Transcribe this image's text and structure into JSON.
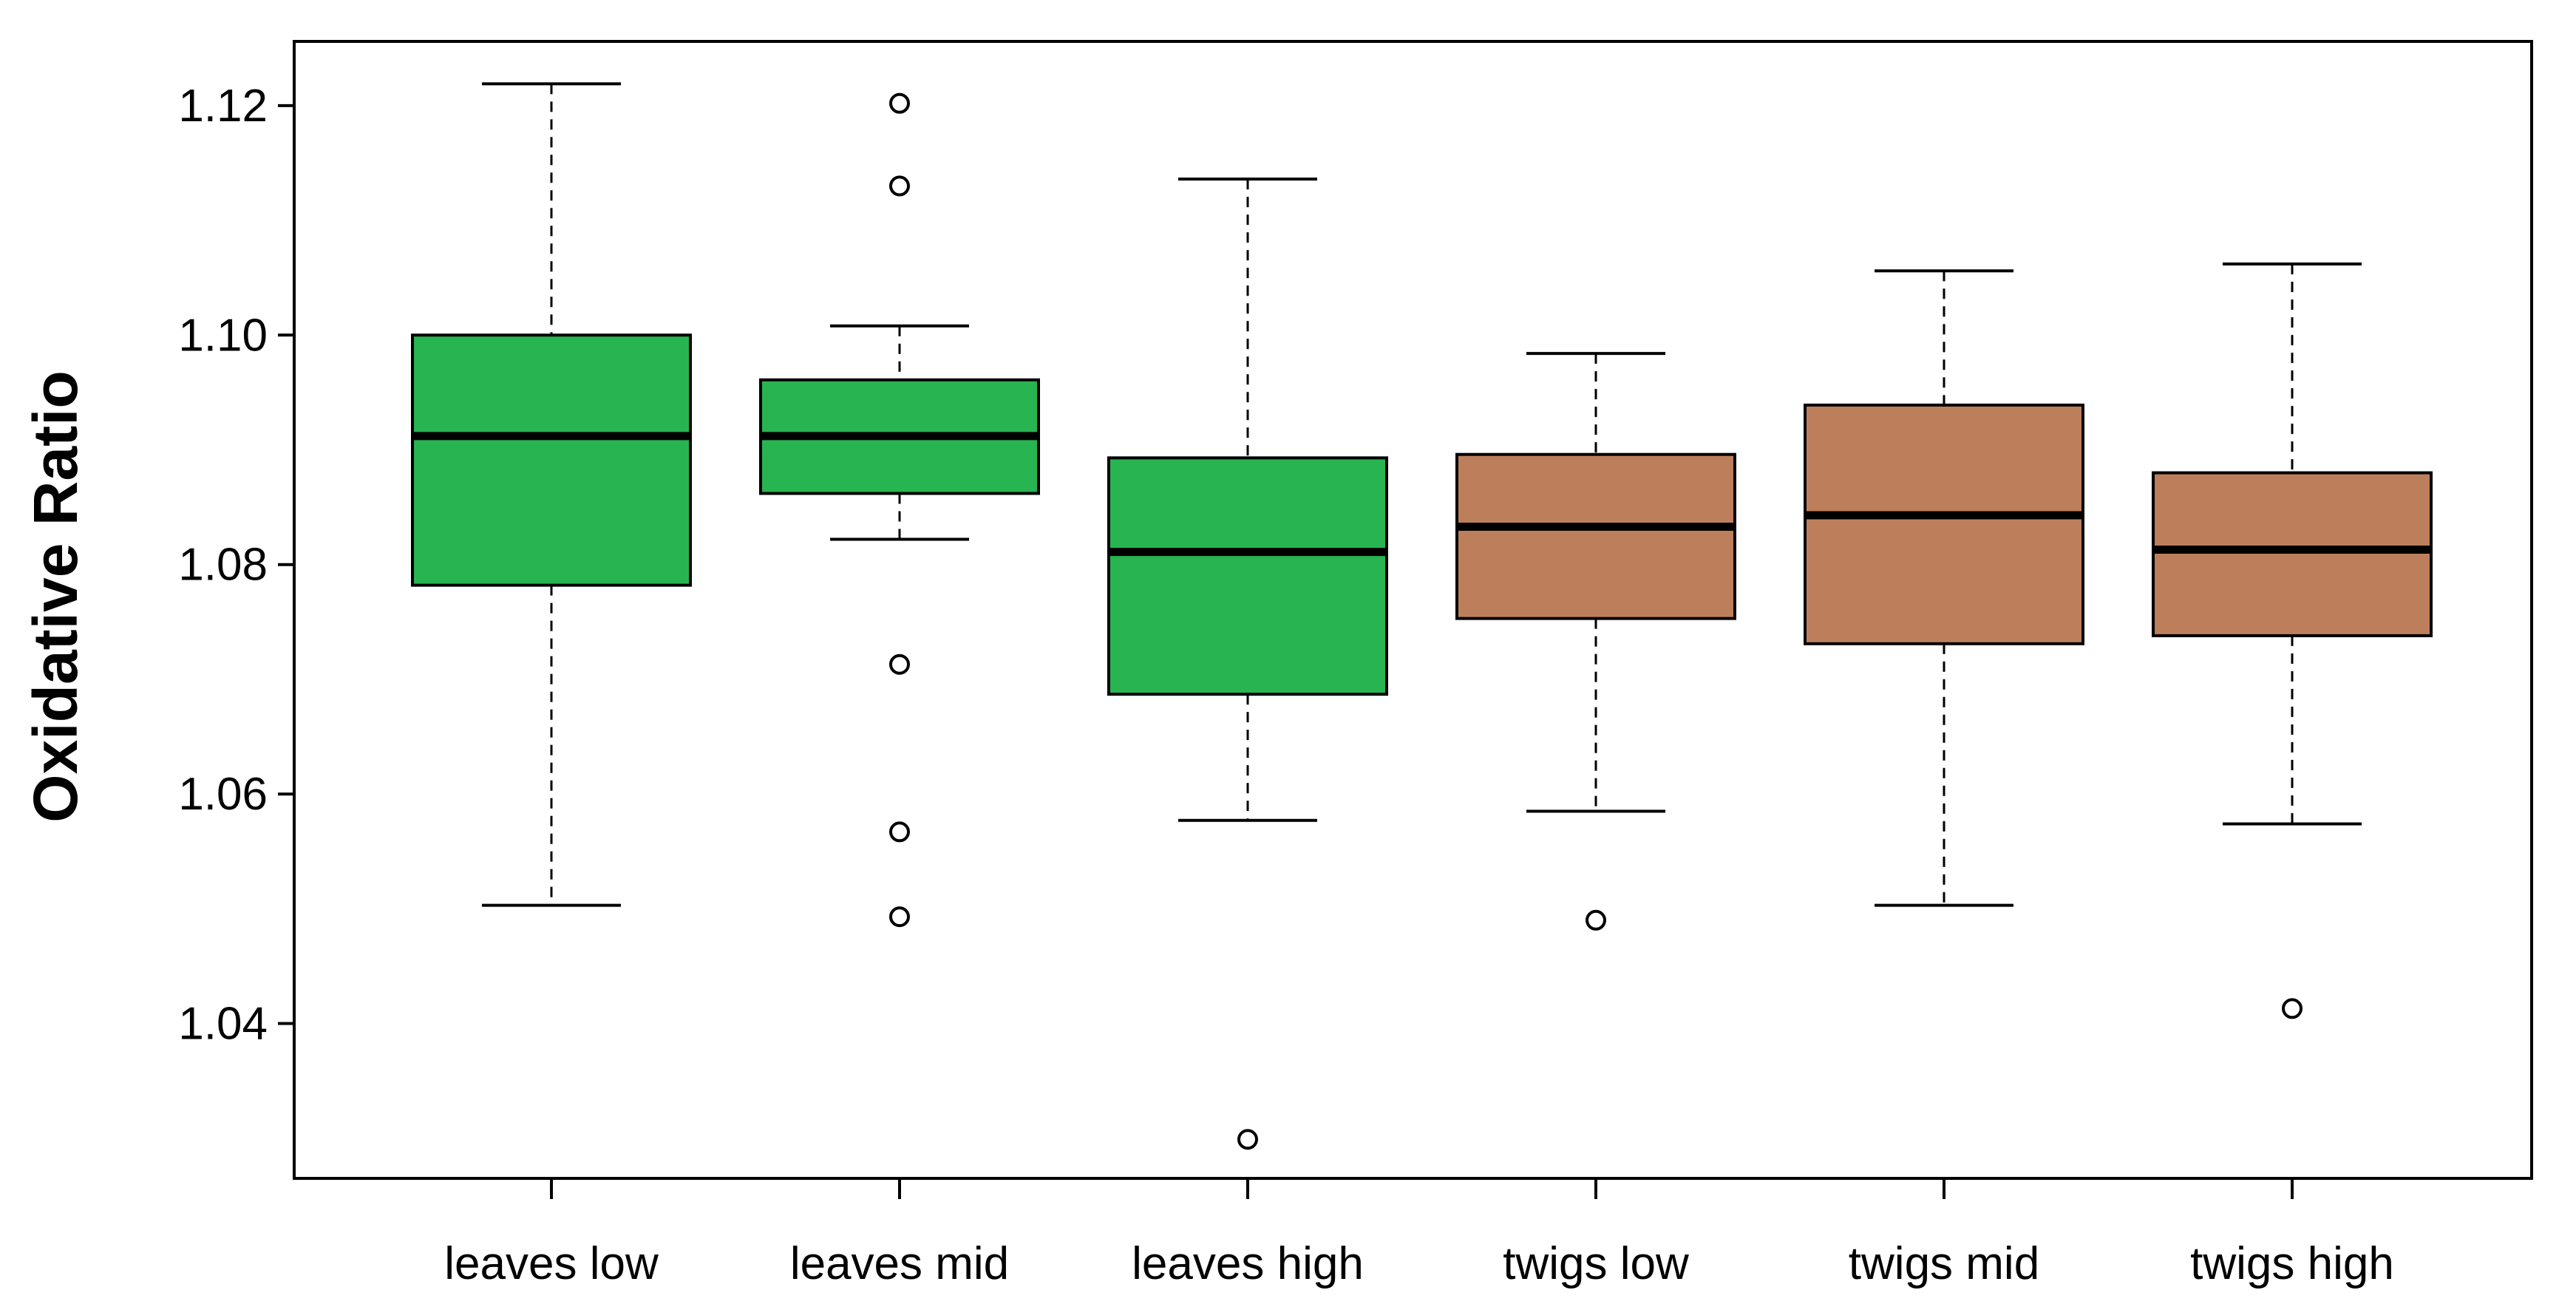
{
  "chart_data": {
    "type": "box",
    "title": "",
    "xlabel": "",
    "ylabel": "Oxidative Ratio",
    "ylim": [
      1.0265,
      1.1256
    ],
    "yticks": [
      1.04,
      1.06,
      1.08,
      1.1,
      1.12
    ],
    "ytick_labels": [
      "1.04",
      "1.06",
      "1.08",
      "1.10",
      "1.12"
    ],
    "grid": false,
    "legend": "none",
    "categories": [
      "leaves low",
      "leaves mid",
      "leaves high",
      "twigs low",
      "twigs mid",
      "twigs high"
    ],
    "boxes": [
      {
        "label": "leaves low",
        "color": "#28b450",
        "whisker_low": 1.0503,
        "q1": 1.0782,
        "median": 1.0912,
        "q3": 1.1,
        "whisker_high": 1.1219,
        "outliers": []
      },
      {
        "label": "leaves mid",
        "color": "#28b450",
        "whisker_low": 1.0822,
        "q1": 1.0862,
        "median": 1.0912,
        "q3": 1.0961,
        "whisker_high": 1.1008,
        "outliers": [
          1.1202,
          1.113,
          1.0713,
          1.0567,
          1.0493
        ]
      },
      {
        "label": "leaves high",
        "color": "#28b450",
        "whisker_low": 1.0577,
        "q1": 1.0687,
        "median": 1.0811,
        "q3": 1.0893,
        "whisker_high": 1.1136,
        "outliers": [
          1.0299
        ]
      },
      {
        "label": "twigs low",
        "color": "#bd7f5b",
        "whisker_low": 1.0585,
        "q1": 1.0753,
        "median": 1.0833,
        "q3": 1.0896,
        "whisker_high": 1.0984,
        "outliers": [
          1.049
        ]
      },
      {
        "label": "twigs mid",
        "color": "#bd7f5b",
        "whisker_low": 1.0503,
        "q1": 1.0731,
        "median": 1.0843,
        "q3": 1.0939,
        "whisker_high": 1.1056,
        "outliers": []
      },
      {
        "label": "twigs high",
        "color": "#bd7f5b",
        "whisker_low": 1.0574,
        "q1": 1.0738,
        "median": 1.0813,
        "q3": 1.088,
        "whisker_high": 1.1062,
        "outliers": [
          1.0413
        ]
      }
    ]
  }
}
